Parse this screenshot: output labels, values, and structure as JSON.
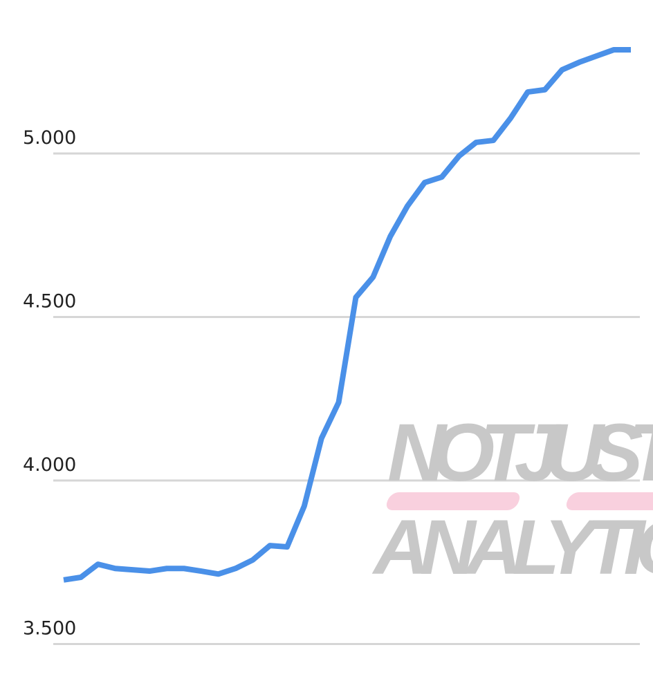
{
  "chart_data": {
    "type": "line",
    "title": "",
    "xlabel": "",
    "ylabel": "",
    "ylim": [
      3.5,
      5.3
    ],
    "y_ticks": [
      {
        "value": 5.0,
        "label": "5.000"
      },
      {
        "value": 4.5,
        "label": "4.500"
      },
      {
        "value": 4.0,
        "label": "4.000"
      },
      {
        "value": 3.5,
        "label": "3.500"
      }
    ],
    "grid": "horizontal",
    "line_color": "#4a90e8",
    "grid_color": "#d6d6d6",
    "series": [
      {
        "values": [
          3.696,
          3.704,
          3.744,
          3.731,
          3.727,
          3.723,
          3.731,
          3.731,
          3.723,
          3.714,
          3.731,
          3.757,
          3.801,
          3.797,
          3.922,
          4.129,
          4.239,
          4.56,
          4.622,
          4.746,
          4.839,
          4.911,
          4.928,
          4.992,
          5.034,
          5.04,
          5.108,
          5.188,
          5.195,
          5.256,
          5.279,
          5.298,
          5.317,
          5.317
        ]
      }
    ]
  },
  "watermark": {
    "line1": "NOTJUST",
    "line2": "ANALYTICS",
    "accent": "#f9d0de"
  }
}
